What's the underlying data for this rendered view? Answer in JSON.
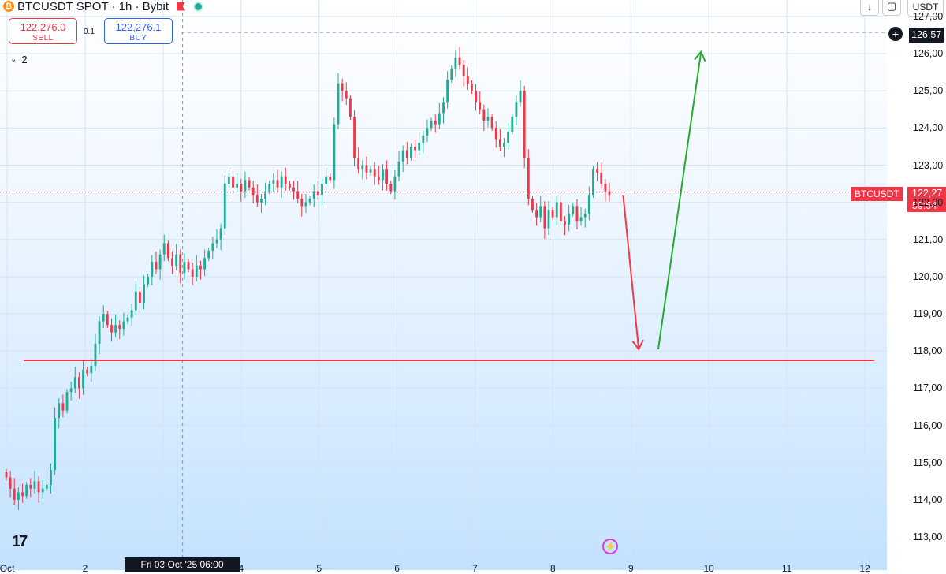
{
  "header": {
    "symbol_title": "BTCUSDT SPOT · 1h · Bybit",
    "sell_price": "122,276.0",
    "sell_label": "SELL",
    "buy_price": "122,276.1",
    "buy_label": "BUY",
    "spread": "0.1",
    "indicator_count": "2"
  },
  "toolbar": {
    "currency": "USDT",
    "download_glyph": "↓",
    "window_glyph": "▢"
  },
  "price_tags": {
    "crosshair_price": "126,57",
    "symbol": "BTCUSDT",
    "last_price": "122,27",
    "countdown": "59:54"
  },
  "time_tag": "Fri 03 Oct '25  06:00",
  "colors": {
    "up": "#22ab94",
    "down": "#f23645",
    "support": "#f23645",
    "bear_arrow": "#f23645",
    "bull_arrow": "#22ab2f"
  },
  "chart_data": {
    "type": "candlestick",
    "symbol": "BTCUSDT",
    "ylim": [
      112500,
      127500
    ],
    "y_ticks": [
      "113,00",
      "114,00",
      "115,00",
      "116,00",
      "117,00",
      "118,00",
      "119,00",
      "120,00",
      "121,00",
      "122,00",
      "123,00",
      "124,00",
      "125,00",
      "126,00",
      "127,00"
    ],
    "y_tick_values": [
      113000,
      114000,
      115000,
      116000,
      117000,
      118000,
      119000,
      120000,
      121000,
      122000,
      123000,
      124000,
      125000,
      126000,
      127000
    ],
    "x_ticks": [
      "Oct",
      "2",
      "3",
      "4",
      "5",
      "6",
      "7",
      "8",
      "9",
      "10",
      "11",
      "12"
    ],
    "x_tick_days": [
      1,
      2,
      3,
      4,
      5,
      6,
      7,
      8,
      9,
      10,
      11,
      12
    ],
    "closes": [
      114600,
      114300,
      114000,
      114200,
      114100,
      114400,
      114300,
      114500,
      114200,
      114300,
      114400,
      114800,
      116200,
      116600,
      116400,
      116900,
      117000,
      117300,
      117000,
      117500,
      117400,
      117600,
      118200,
      118800,
      119000,
      118700,
      118500,
      118700,
      118600,
      118800,
      118900,
      119100,
      119600,
      119300,
      119800,
      120000,
      120400,
      120200,
      120600,
      120900,
      120500,
      120300,
      120600,
      120100,
      120400,
      120200,
      120000,
      120300,
      120200,
      120500,
      120700,
      120900,
      121000,
      121300,
      122500,
      122700,
      122400,
      122500,
      122300,
      122600,
      122400,
      122200,
      122000,
      122100,
      122300,
      122500,
      122600,
      122400,
      122700,
      122500,
      122400,
      122300,
      122100,
      121900,
      122000,
      122100,
      122300,
      122200,
      122500,
      122700,
      122600,
      124100,
      125200,
      125000,
      124800,
      124300,
      123200,
      122900,
      123000,
      122800,
      122900,
      122700,
      122600,
      122900,
      122500,
      122300,
      122700,
      123100,
      123400,
      123200,
      123500,
      123400,
      123600,
      123800,
      124000,
      124200,
      124100,
      124400,
      124700,
      125300,
      125600,
      125900,
      125700,
      125400,
      125200,
      125000,
      124700,
      124500,
      124200,
      124300,
      124000,
      123700,
      123500,
      123600,
      123900,
      124300,
      124700,
      125000,
      123200,
      122100,
      121800,
      121600,
      121900,
      121300,
      121800,
      121600,
      122000,
      121500,
      121400,
      121700,
      121900,
      121500,
      121600,
      121700,
      122200,
      122900,
      122800,
      122500,
      122300,
      122200
    ],
    "support_level": 117750,
    "arrows": [
      {
        "direction": "down",
        "from": {
          "day": 8.9,
          "price": 122200
        },
        "to": {
          "day": 9.1,
          "price": 118050
        }
      },
      {
        "direction": "up",
        "from": {
          "day": 9.35,
          "price": 118050
        },
        "to": {
          "day": 9.9,
          "price": 126050
        }
      }
    ],
    "crosshair": {
      "day": 3.25,
      "price": 126570
    },
    "last_price_line": 122276
  }
}
